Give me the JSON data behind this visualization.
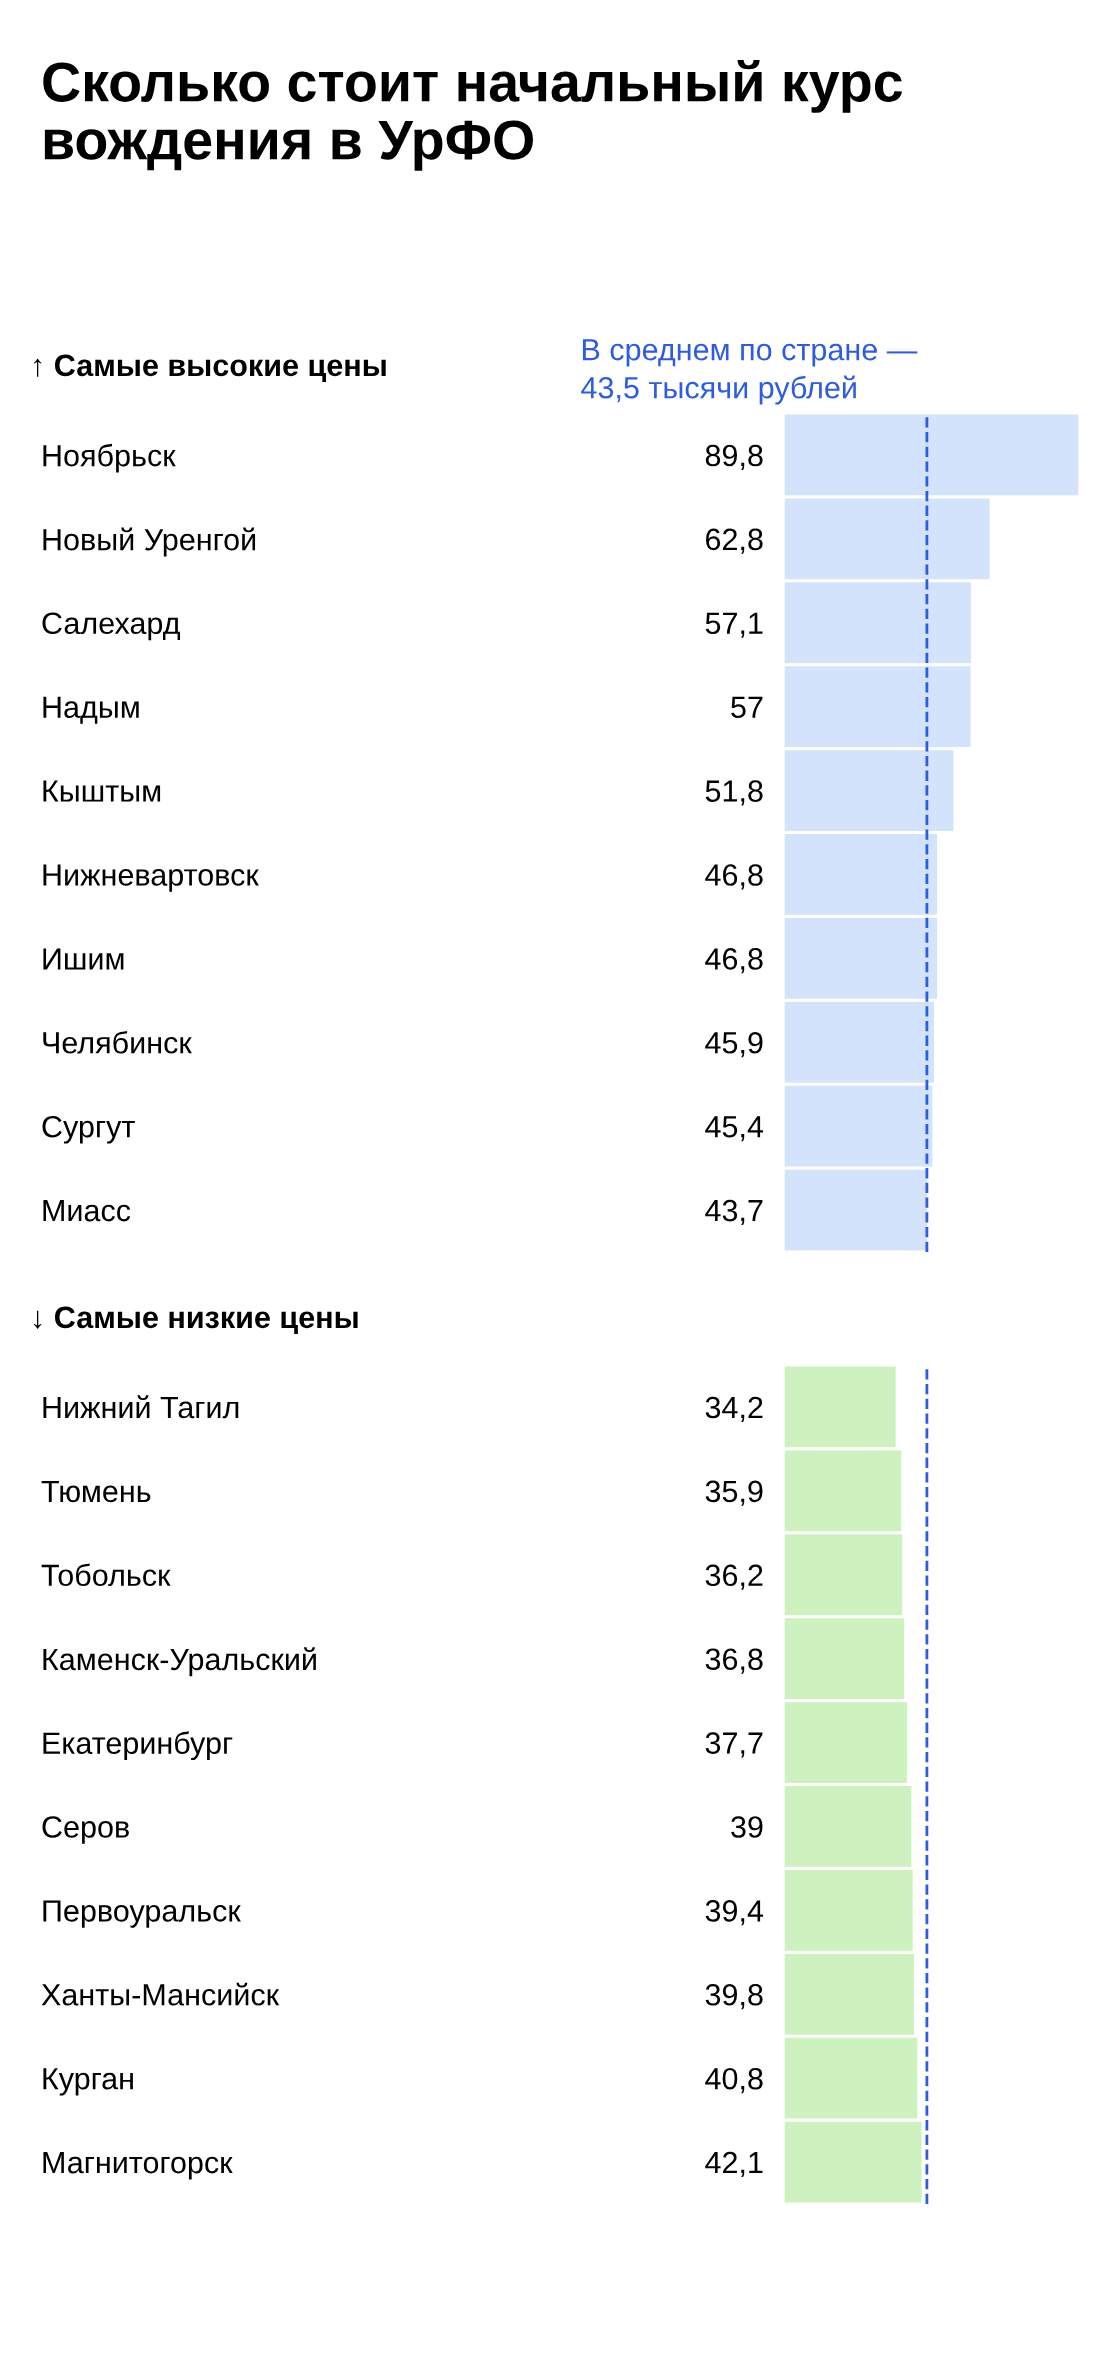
{
  "chart_data": [
    {
      "type": "bar",
      "orientation": "horizontal",
      "title": "Сколько стоит начальный курс вождения в УрФО",
      "subtitle": "↑ Самые высокие цены",
      "categories": [
        "Ноябрьск",
        "Новый Уренгой",
        "Салехард",
        "Надым",
        "Кыштым",
        "Нижневартовск",
        "Ишим",
        "Челябинск",
        "Сургут",
        "Миасс"
      ],
      "values": [
        89.8,
        62.8,
        57.1,
        57,
        51.8,
        46.8,
        46.8,
        45.9,
        45.4,
        43.7
      ],
      "value_labels": [
        "89,8",
        "62,8",
        "57,1",
        "57",
        "51,8",
        "46,8",
        "46,8",
        "45,9",
        "45,4",
        "43,7"
      ],
      "color": "#d3e3fb",
      "tick_labels": "y",
      "grid": false,
      "legend": false,
      "ref_lines": [
        {
          "axis": "x",
          "value": 43.5,
          "label": "В среднем по стране —\n43,5 тысячи рублей",
          "color": "#2c5be6",
          "line_style": "dashed"
        }
      ]
    },
    {
      "type": "bar",
      "orientation": "horizontal",
      "title": "↓ Самые низкие цены",
      "categories": [
        "Нижний Тагил",
        "Тюмень",
        "Тобольск",
        "Каменск-Уральский",
        "Екатеринбург",
        "Серов",
        "Первоуральск",
        "Ханты-Мансийск",
        "Курган",
        "Магнитогорск"
      ],
      "values": [
        34.2,
        35.9,
        36.2,
        36.8,
        37.7,
        39,
        39.4,
        39.8,
        40.8,
        42.1
      ],
      "value_labels": [
        "34,2",
        "35,9",
        "36,2",
        "36,8",
        "37,7",
        "39",
        "39,4",
        "39,8",
        "40,8",
        "42,1"
      ],
      "color": "#cdf2c0",
      "tick_labels": "y",
      "grid": false,
      "legend": false,
      "ref_lines": [
        {
          "axis": "x",
          "value": 43.5,
          "color": "#2c5be6",
          "line_style": "dashed"
        }
      ]
    }
  ]
}
